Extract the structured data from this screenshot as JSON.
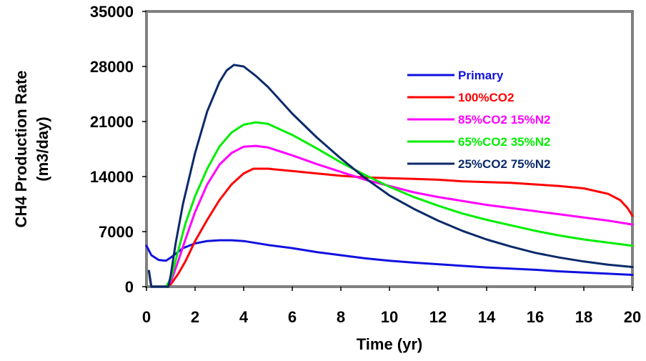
{
  "chart_data": {
    "type": "line",
    "title": "",
    "xlabel": "Time (yr)",
    "ylabel": "CH4 Production Rate\n(m3/day)",
    "xlim": [
      0,
      20
    ],
    "ylim": [
      0,
      35000
    ],
    "x_ticks": [
      "0",
      "2",
      "4",
      "6",
      "8",
      "10",
      "12",
      "14",
      "16",
      "18",
      "20"
    ],
    "y_ticks": [
      "0",
      "7000",
      "14000",
      "21000",
      "28000",
      "35000"
    ],
    "grid": false,
    "legend_position": "top-right",
    "series": [
      {
        "name": "Primary",
        "color": "#1010e0",
        "points": [
          [
            0,
            5200
          ],
          [
            0.2,
            4000
          ],
          [
            0.5,
            3400
          ],
          [
            0.8,
            3300
          ],
          [
            1,
            3700
          ],
          [
            1.5,
            4900
          ],
          [
            2,
            5500
          ],
          [
            2.5,
            5800
          ],
          [
            3,
            5900
          ],
          [
            3.5,
            5900
          ],
          [
            4,
            5800
          ],
          [
            5,
            5300
          ],
          [
            6,
            4900
          ],
          [
            7,
            4400
          ],
          [
            8,
            4000
          ],
          [
            9,
            3600
          ],
          [
            10,
            3300
          ],
          [
            11,
            3050
          ],
          [
            12,
            2850
          ],
          [
            13,
            2650
          ],
          [
            14,
            2450
          ],
          [
            15,
            2300
          ],
          [
            16,
            2150
          ],
          [
            17,
            1950
          ],
          [
            18,
            1800
          ],
          [
            19,
            1650
          ],
          [
            20,
            1500
          ]
        ]
      },
      {
        "name": "100%CO2",
        "color": "#ff0000",
        "points": [
          [
            0.1,
            2000
          ],
          [
            0.15,
            800
          ],
          [
            0.2,
            0
          ],
          [
            0.8,
            0
          ],
          [
            1,
            300
          ],
          [
            1.3,
            1600
          ],
          [
            1.6,
            3200
          ],
          [
            2,
            5800
          ],
          [
            2.5,
            8500
          ],
          [
            3,
            11000
          ],
          [
            3.5,
            13000
          ],
          [
            4,
            14400
          ],
          [
            4.4,
            15000
          ],
          [
            5,
            15000
          ],
          [
            6,
            14700
          ],
          [
            7,
            14400
          ],
          [
            8,
            14100
          ],
          [
            9,
            13900
          ],
          [
            10,
            13800
          ],
          [
            11,
            13700
          ],
          [
            12,
            13600
          ],
          [
            13,
            13400
          ],
          [
            14,
            13300
          ],
          [
            15,
            13200
          ],
          [
            16,
            13000
          ],
          [
            17,
            12800
          ],
          [
            18,
            12500
          ],
          [
            19,
            11800
          ],
          [
            19.5,
            11000
          ],
          [
            19.8,
            10000
          ],
          [
            20,
            9000
          ]
        ]
      },
      {
        "name": "85%CO2 15%N2",
        "color": "#ff00ff",
        "points": [
          [
            0.1,
            2000
          ],
          [
            0.2,
            0
          ],
          [
            0.8,
            0
          ],
          [
            1,
            600
          ],
          [
            1.3,
            3200
          ],
          [
            1.6,
            6000
          ],
          [
            2,
            9500
          ],
          [
            2.5,
            13000
          ],
          [
            3,
            15500
          ],
          [
            3.5,
            17000
          ],
          [
            4,
            17800
          ],
          [
            4.5,
            17900
          ],
          [
            5,
            17700
          ],
          [
            6,
            16700
          ],
          [
            7,
            15600
          ],
          [
            8,
            14600
          ],
          [
            9,
            13600
          ],
          [
            10,
            12800
          ],
          [
            11,
            12000
          ],
          [
            12,
            11400
          ],
          [
            13,
            10900
          ],
          [
            14,
            10400
          ],
          [
            15,
            10000
          ],
          [
            16,
            9600
          ],
          [
            17,
            9200
          ],
          [
            18,
            8800
          ],
          [
            19,
            8400
          ],
          [
            20,
            7900
          ]
        ]
      },
      {
        "name": "65%CO2 35%N2",
        "color": "#00ee00",
        "points": [
          [
            0.1,
            2000
          ],
          [
            0.2,
            0
          ],
          [
            0.8,
            0
          ],
          [
            1,
            1000
          ],
          [
            1.3,
            4500
          ],
          [
            1.6,
            8000
          ],
          [
            2,
            11500
          ],
          [
            2.5,
            15000
          ],
          [
            3,
            17800
          ],
          [
            3.5,
            19600
          ],
          [
            4,
            20600
          ],
          [
            4.5,
            20900
          ],
          [
            5,
            20700
          ],
          [
            6,
            19300
          ],
          [
            7,
            17600
          ],
          [
            8,
            15800
          ],
          [
            9,
            14200
          ],
          [
            10,
            12700
          ],
          [
            11,
            11400
          ],
          [
            12,
            10300
          ],
          [
            13,
            9300
          ],
          [
            14,
            8500
          ],
          [
            15,
            7800
          ],
          [
            16,
            7100
          ],
          [
            17,
            6500
          ],
          [
            18,
            6000
          ],
          [
            19,
            5600
          ],
          [
            20,
            5200
          ]
        ]
      },
      {
        "name": "25%CO2 75%N2",
        "color": "#0a2a6a",
        "points": [
          [
            0.1,
            2000
          ],
          [
            0.2,
            0
          ],
          [
            0.9,
            0
          ],
          [
            1,
            1500
          ],
          [
            1.2,
            5500
          ],
          [
            1.5,
            10500
          ],
          [
            2,
            17000
          ],
          [
            2.5,
            22300
          ],
          [
            3,
            26000
          ],
          [
            3.3,
            27500
          ],
          [
            3.6,
            28200
          ],
          [
            4,
            28000
          ],
          [
            4.5,
            26800
          ],
          [
            5,
            25400
          ],
          [
            6,
            22000
          ],
          [
            7,
            19000
          ],
          [
            8,
            16300
          ],
          [
            9,
            13800
          ],
          [
            10,
            11600
          ],
          [
            11,
            9900
          ],
          [
            12,
            8400
          ],
          [
            13,
            7100
          ],
          [
            14,
            6000
          ],
          [
            15,
            5100
          ],
          [
            16,
            4300
          ],
          [
            17,
            3700
          ],
          [
            18,
            3200
          ],
          [
            19,
            2800
          ],
          [
            20,
            2500
          ]
        ]
      }
    ]
  }
}
